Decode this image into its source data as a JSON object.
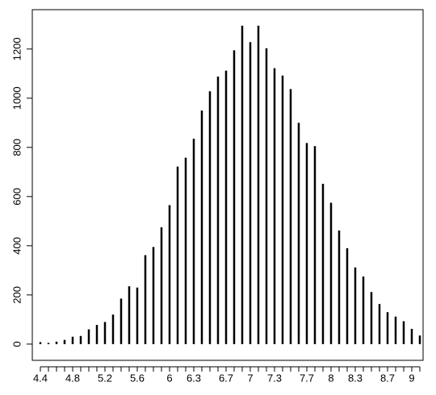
{
  "chart_data": {
    "type": "bar",
    "style": "spike",
    "color": "#000000",
    "categories": [
      "4.4",
      null,
      null,
      null,
      "4.8",
      null,
      null,
      null,
      "5.2",
      null,
      null,
      null,
      "5.6",
      null,
      null,
      null,
      "6",
      null,
      null,
      "6.3",
      null,
      null,
      null,
      "6.7",
      null,
      null,
      "7",
      null,
      null,
      "7.3",
      null,
      null,
      null,
      "7.7",
      null,
      null,
      "8",
      null,
      null,
      "8.3",
      null,
      null,
      null,
      "8.7",
      null,
      null,
      "9",
      null
    ],
    "values": [
      8,
      5,
      10,
      17,
      30,
      33,
      60,
      78,
      90,
      120,
      185,
      235,
      230,
      362,
      395,
      475,
      565,
      722,
      758,
      835,
      950,
      1028,
      1088,
      1112,
      1195,
      1295,
      1228,
      1295,
      1203,
      1122,
      1092,
      1037,
      900,
      818,
      805,
      652,
      575,
      462,
      390,
      312,
      275,
      212,
      163,
      130,
      112,
      93,
      62,
      35
    ],
    "ylim": [
      -66,
      1360
    ],
    "yticks": [
      0,
      200,
      400,
      600,
      800,
      1000,
      1200
    ]
  }
}
